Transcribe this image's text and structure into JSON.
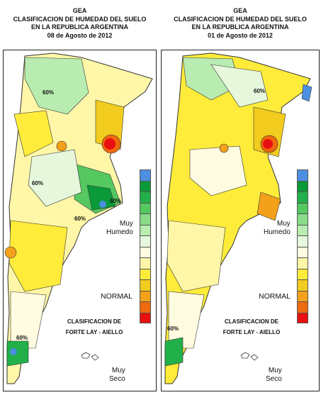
{
  "maps": [
    {
      "org": "GEA",
      "title_line1": "CLASIFICACION DE HUMEDAD DEL SUELO",
      "title_line2": "EN LA REPUBLICA ARGENTINA",
      "date": "08 de Agosto de 2012",
      "contour_labels": [
        "60%",
        "60%",
        "60%",
        "60%",
        "60%"
      ],
      "legend": {
        "top_label_1": "Muy",
        "top_label_2": "Humedo",
        "mid_label": "NORMAL",
        "bottom_label_1": "Muy",
        "bottom_label_2": "Seco",
        "classification_1": "CLASIFICACION DE",
        "classification_2": "FORTE LAY - AIELLO"
      }
    },
    {
      "org": "GEA",
      "title_line1": "CLASIFICACION DE HUMEDAD DEL SUELO",
      "title_line2": "EN LA REPUBLICA ARGENTINA",
      "date": "01 de Agosto de 2012",
      "contour_labels": [
        "60%",
        "60%"
      ],
      "legend": {
        "top_label_1": "Muy",
        "top_label_2": "Humedo",
        "mid_label": "NORMAL",
        "bottom_label_1": "Muy",
        "bottom_label_2": "Seco",
        "classification_1": "CLASIFICACION DE",
        "classification_2": "FORTE LAY - AIELLO"
      }
    }
  ],
  "legend_colors": [
    "#4d8fe0",
    "#0a9a3a",
    "#22b04a",
    "#55c860",
    "#8adc8a",
    "#b8ecb0",
    "#e6f7dc",
    "#fffbe0",
    "#fff6a8",
    "#ffec3a",
    "#f2cc1e",
    "#f3a11a",
    "#ee6a0e",
    "#e81010"
  ]
}
